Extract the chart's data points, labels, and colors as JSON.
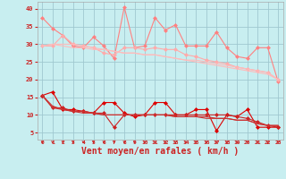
{
  "background_color": "#c8eef0",
  "grid_color": "#a0c8d0",
  "xlabel": "Vent moyen/en rafales ( km/h )",
  "xlabel_fontsize": 7,
  "tick_color": "#cc2222",
  "ylabel_ticks": [
    5,
    10,
    15,
    20,
    25,
    30,
    35,
    40
  ],
  "xlim": [
    -0.5,
    23.5
  ],
  "ylim": [
    3,
    42
  ],
  "series_upper": [
    [
      37.5,
      34.5,
      32.5,
      29.5,
      29.0,
      32.0,
      29.5,
      26.0,
      40.5,
      29.0,
      29.5,
      37.5,
      34.0,
      35.5,
      29.5,
      29.5,
      29.5,
      33.5,
      29.0,
      26.5,
      26.0,
      29.0,
      29.0,
      19.5
    ],
    [
      29.5,
      29.5,
      32.5,
      30.0,
      29.5,
      29.0,
      27.5,
      27.0,
      29.0,
      29.0,
      28.5,
      29.0,
      28.5,
      28.5,
      27.0,
      26.5,
      25.5,
      25.0,
      24.5,
      23.5,
      23.0,
      22.5,
      22.0,
      20.0
    ],
    [
      29.5,
      30.0,
      30.0,
      30.0,
      29.5,
      29.0,
      28.5,
      28.0,
      27.5,
      27.5,
      27.0,
      27.0,
      26.5,
      26.0,
      25.5,
      25.0,
      24.5,
      24.0,
      23.5,
      23.0,
      22.5,
      22.0,
      21.5,
      20.0
    ],
    [
      29.5,
      30.0,
      29.5,
      29.0,
      29.0,
      28.5,
      28.5,
      28.0,
      27.5,
      27.5,
      27.0,
      27.0,
      26.5,
      26.0,
      25.5,
      25.5,
      25.0,
      24.5,
      24.0,
      23.5,
      23.0,
      22.5,
      22.0,
      20.0
    ]
  ],
  "series_upper_colors": [
    "#ff8080",
    "#ffaaaa",
    "#ffbbbb",
    "#ffbbbb"
  ],
  "series_upper_markers": [
    "D",
    "D",
    null,
    null
  ],
  "series_upper_lw": [
    0.8,
    0.8,
    0.8,
    0.8
  ],
  "series_lower": [
    [
      15.5,
      16.5,
      11.5,
      11.5,
      11.0,
      10.5,
      13.5,
      13.5,
      10.5,
      9.5,
      10.0,
      13.5,
      13.5,
      10.0,
      10.0,
      11.5,
      11.5,
      5.5,
      10.0,
      9.5,
      11.5,
      6.5,
      6.5,
      6.5
    ],
    [
      15.5,
      12.0,
      12.0,
      11.0,
      11.0,
      10.5,
      10.5,
      6.5,
      10.0,
      10.0,
      10.0,
      10.0,
      10.0,
      10.0,
      10.0,
      10.0,
      10.0,
      10.0,
      10.0,
      9.5,
      9.0,
      8.0,
      7.0,
      6.5
    ],
    [
      15.5,
      12.0,
      11.5,
      11.0,
      10.5,
      10.5,
      10.0,
      10.0,
      10.0,
      10.0,
      10.0,
      10.0,
      10.0,
      9.5,
      9.5,
      9.5,
      9.0,
      9.0,
      9.0,
      8.5,
      8.5,
      7.5,
      7.0,
      7.0
    ],
    [
      15.5,
      12.5,
      11.5,
      11.0,
      11.0,
      10.5,
      10.0,
      10.0,
      10.0,
      10.0,
      10.0,
      10.0,
      10.0,
      9.5,
      9.5,
      9.5,
      9.5,
      9.0,
      9.0,
      8.5,
      8.5,
      7.5,
      7.0,
      7.0
    ]
  ],
  "series_lower_colors": [
    "#dd0000",
    "#cc2222",
    "#cc3333",
    "#cc3333"
  ],
  "series_lower_markers": [
    "D",
    "D",
    null,
    null
  ],
  "series_lower_lw": [
    0.8,
    0.8,
    0.8,
    0.8
  ]
}
